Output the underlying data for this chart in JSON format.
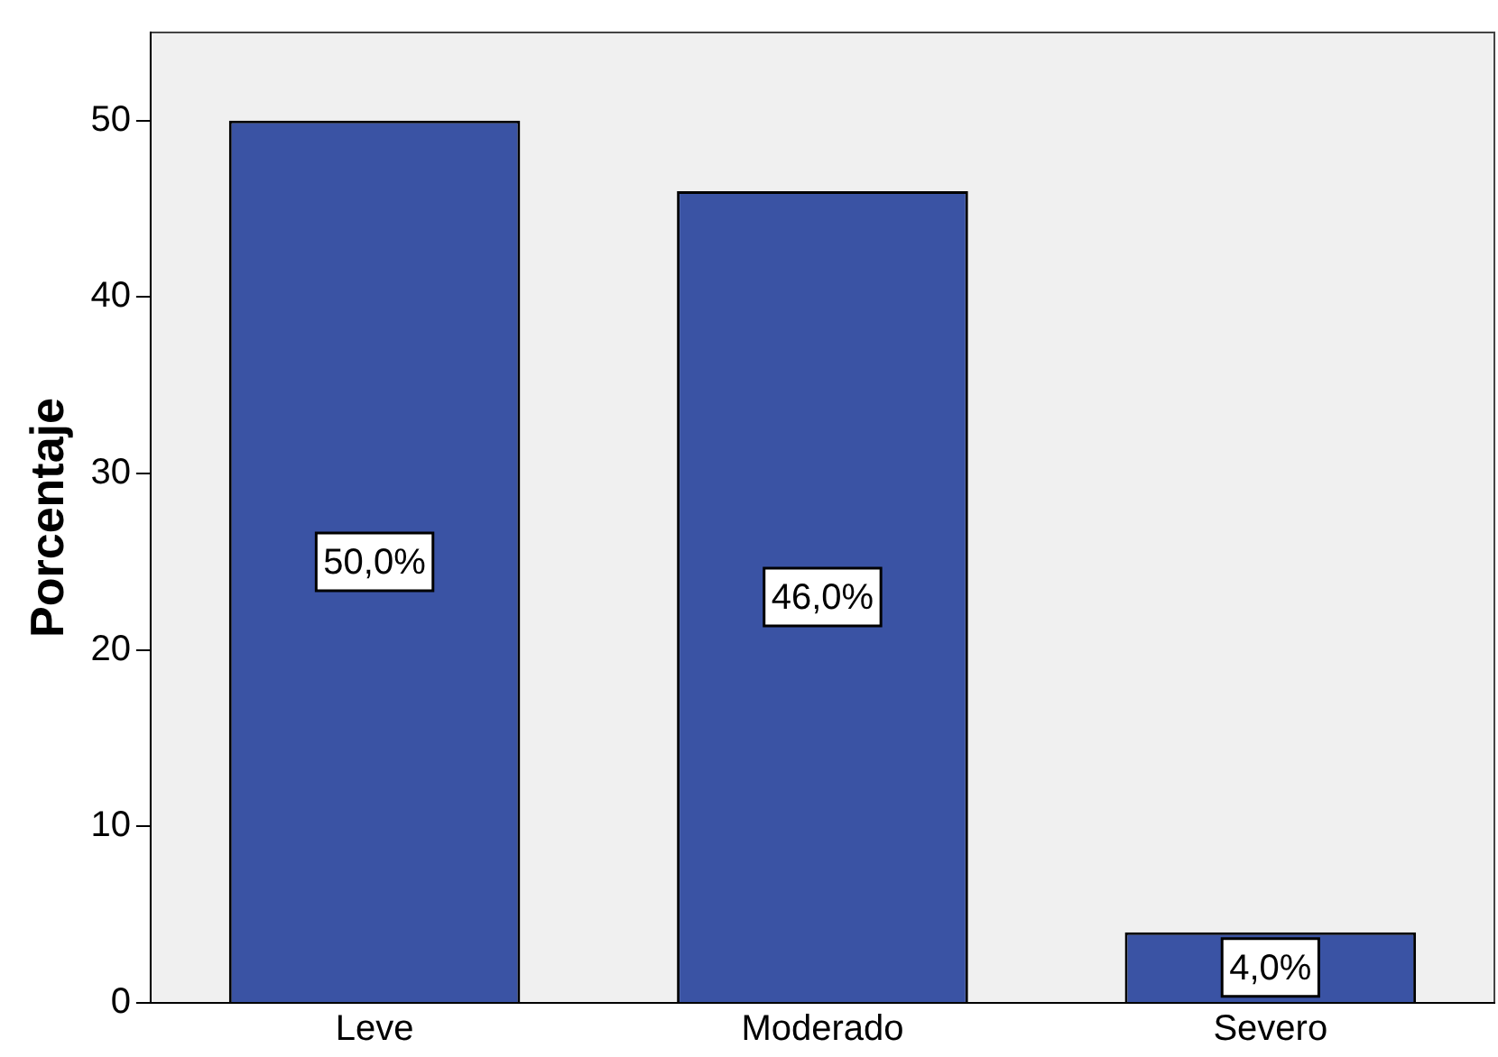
{
  "chart_data": {
    "type": "bar",
    "ylabel": "Porcentaje",
    "categories": [
      "Leve",
      "Moderado",
      "Severo"
    ],
    "values": [
      50,
      46,
      4
    ],
    "color": "#3a53a4",
    "value_labels": [
      "50,0%",
      "46,0%",
      "4,0%"
    ],
    "ylim": [
      0,
      55
    ],
    "yticks": [
      0,
      10,
      20,
      30,
      40,
      50
    ],
    "grid": false,
    "legend": false
  }
}
